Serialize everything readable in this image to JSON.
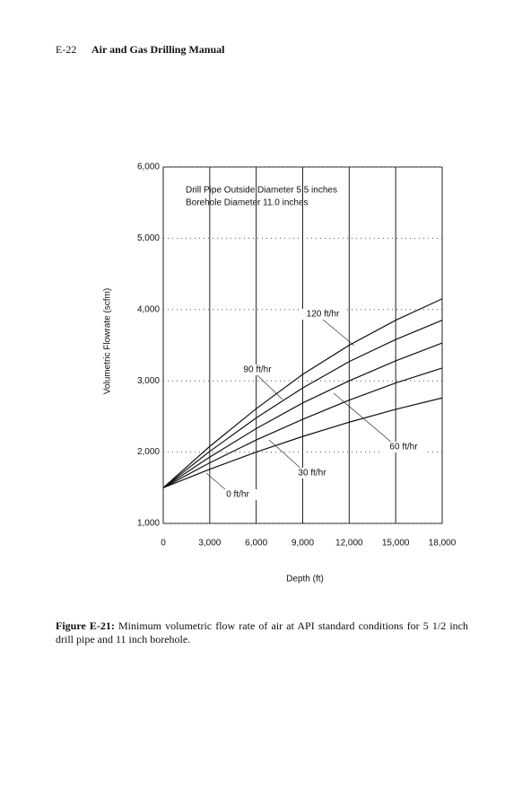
{
  "header": {
    "page": "E-22",
    "title": "Air and Gas Drilling Manual"
  },
  "chart_data": {
    "type": "line",
    "annotations": [
      "Drill Pipe Outside Diameter 5.5 inches",
      "Borehole Diameter 11.0 inches"
    ],
    "x_label": "Depth (ft)",
    "y_label": "Volumetric Flowrate (scfm)",
    "x": [
      0,
      3000,
      6000,
      9000,
      12000,
      15000,
      18000
    ],
    "series": [
      {
        "name": "0 ft/hr",
        "color": "#111111",
        "values": [
          1500,
          1760,
          2000,
          2220,
          2420,
          2600,
          2760
        ]
      },
      {
        "name": "30 ft/hr",
        "color": "#111111",
        "values": [
          1500,
          1850,
          2170,
          2460,
          2730,
          2970,
          3180
        ]
      },
      {
        "name": "60 ft/hr",
        "color": "#111111",
        "values": [
          1500,
          1930,
          2330,
          2690,
          3000,
          3280,
          3530
        ]
      },
      {
        "name": "90 ft/hr",
        "color": "#111111",
        "values": [
          1500,
          2010,
          2480,
          2900,
          3270,
          3580,
          3850
        ]
      },
      {
        "name": "120 ft/hr",
        "color": "#111111",
        "values": [
          1500,
          2080,
          2610,
          3090,
          3500,
          3850,
          4150
        ]
      }
    ],
    "xlim": [
      0,
      18000
    ],
    "xticks": [
      0,
      {
        "value": 3000,
        "label": "3,000"
      },
      {
        "value": 6000,
        "label": "6,000"
      },
      {
        "value": 9000,
        "label": "9,000"
      },
      {
        "value": 12000,
        "label": "12,000"
      },
      {
        "value": 15000,
        "label": "15,000"
      },
      {
        "value": 18000,
        "label": "18,000"
      }
    ],
    "ylim": [
      1000,
      6000
    ],
    "yticks": [
      {
        "value": 1000,
        "label": "1,000"
      },
      {
        "value": 2000,
        "label": "2,000"
      },
      {
        "value": 3000,
        "label": "3,000"
      },
      {
        "value": 4000,
        "label": "4,000"
      },
      {
        "value": 5000,
        "label": "5,000"
      },
      {
        "value": 6000,
        "label": "6,000"
      }
    ],
    "grid": true
  },
  "caption": {
    "label": "Figure E-21:",
    "text": "Minimum volumetric flow rate of air at API standard conditions for 5 1/2 inch drill pipe and 11 inch borehole."
  }
}
